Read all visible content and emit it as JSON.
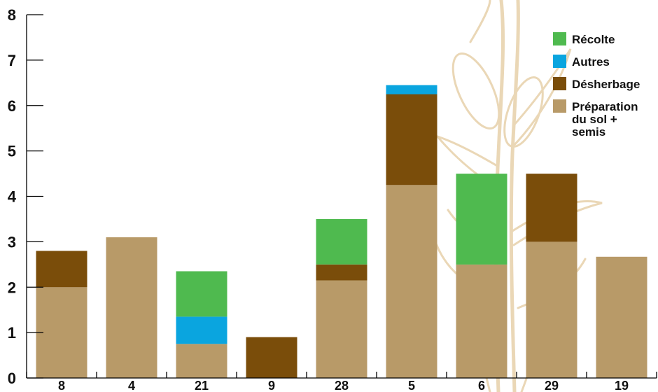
{
  "chart_data": {
    "type": "bar",
    "stacked": true,
    "title": "",
    "xlabel": "",
    "ylabel": "",
    "ylim": [
      0,
      8
    ],
    "yticks": [
      0,
      1,
      2,
      3,
      4,
      5,
      6,
      7,
      8
    ],
    "grid": false,
    "legend_position": "top-right",
    "categories": [
      "8",
      "4",
      "21",
      "9",
      "28",
      "5",
      "6",
      "29",
      "19"
    ],
    "series": [
      {
        "name": "Préparation du sol + semis",
        "color": "#b89a68",
        "values": [
          2.0,
          3.1,
          0.75,
          0.0,
          2.15,
          4.25,
          2.5,
          3.0,
          2.67
        ]
      },
      {
        "name": "Désherbage",
        "color": "#7a4d0a",
        "values": [
          0.8,
          0.0,
          0.0,
          0.9,
          0.35,
          2.0,
          0.0,
          1.5,
          0.0
        ]
      },
      {
        "name": "Autres",
        "color": "#0aa5df",
        "values": [
          0.0,
          0.0,
          0.6,
          0.0,
          0.0,
          0.2,
          0.0,
          0.0,
          0.0
        ]
      },
      {
        "name": "Récolte",
        "color": "#4fba4f",
        "values": [
          0.0,
          0.0,
          1.0,
          0.0,
          1.0,
          0.0,
          2.0,
          0.0,
          0.0
        ]
      }
    ],
    "legend": [
      {
        "lines": [
          "Récolte"
        ],
        "color": "#4fba4f"
      },
      {
        "lines": [
          "Autres"
        ],
        "color": "#0aa5df"
      },
      {
        "lines": [
          "Désherbage"
        ],
        "color": "#7a4d0a"
      },
      {
        "lines": [
          "Préparation",
          "du sol +",
          "semis"
        ],
        "color": "#b89a68"
      }
    ],
    "background_watermark": "maize-plant-drawing",
    "watermark_color": "#ead7b6"
  }
}
